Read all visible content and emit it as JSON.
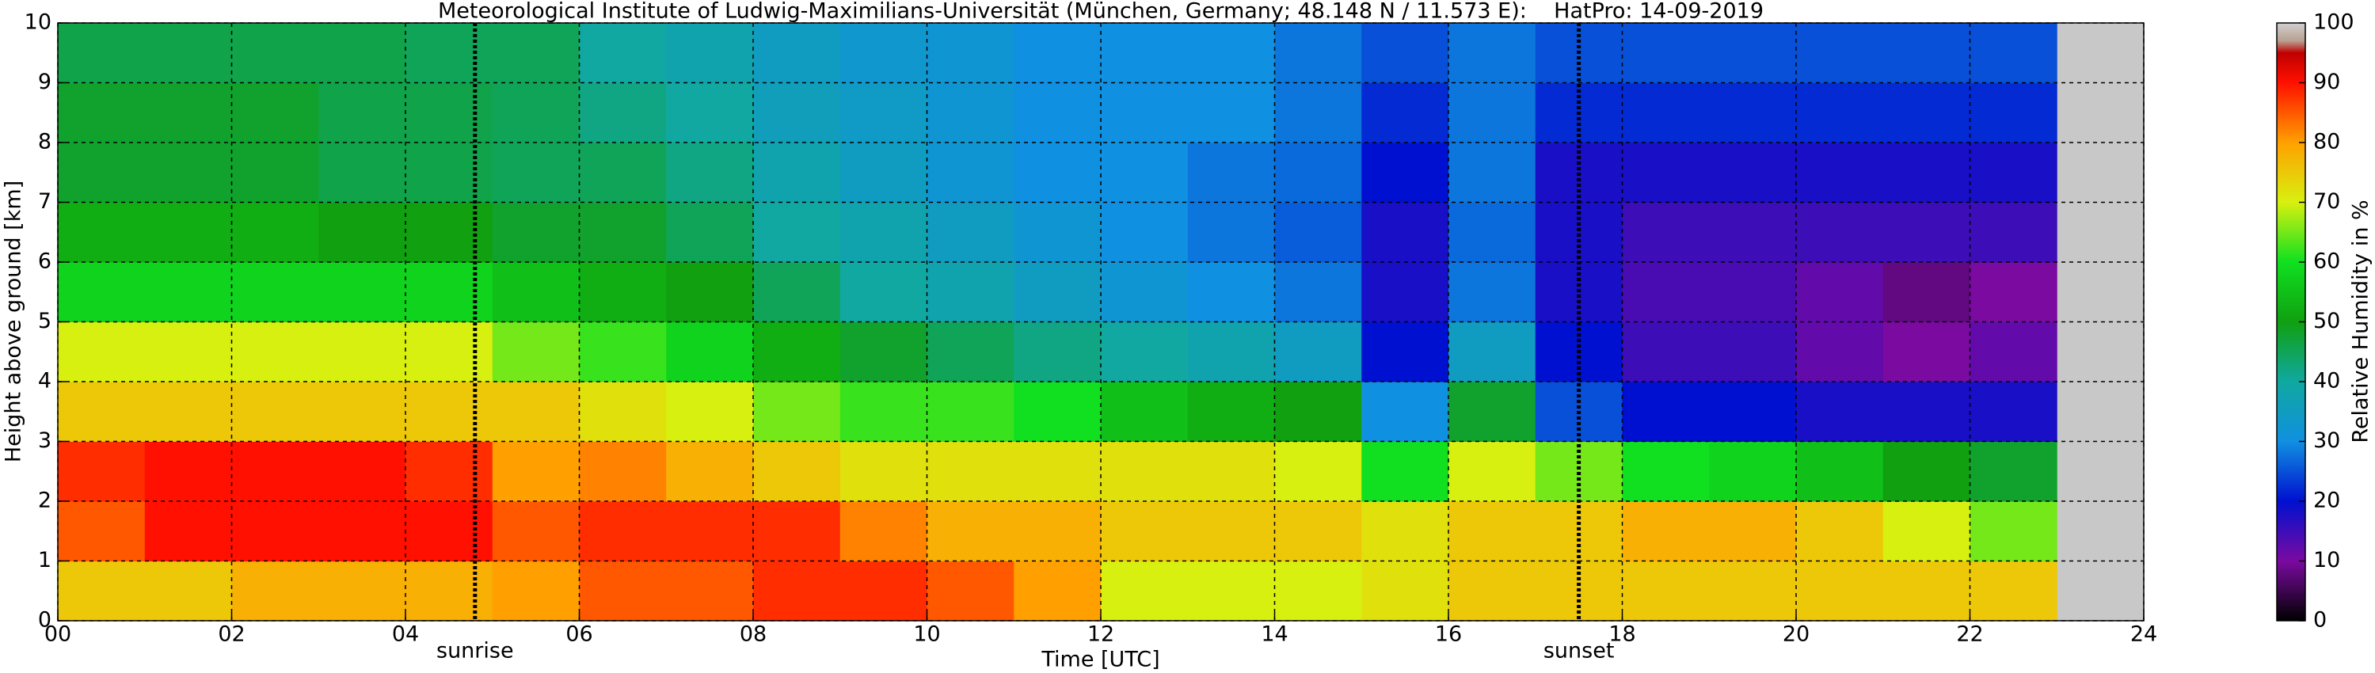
{
  "chart_data": {
    "type": "heatmap",
    "title": "Meteorological Institute of Ludwig-Maximilians-Universität (München, Germany; 48.148 N / 11.573 E):    HatPro: 14-09-2019",
    "x_label": "Time [UTC]",
    "y_label": "Height above ground [km]",
    "colorbar_label": "Relative Humidity in %",
    "xbins": [
      0,
      1,
      2,
      3,
      4,
      5,
      6,
      7,
      8,
      9,
      10,
      11,
      12,
      13,
      14,
      15,
      16,
      17,
      18,
      19,
      20,
      21,
      22,
      23
    ],
    "ybins": [
      0,
      1,
      2,
      3,
      4,
      5,
      6,
      7,
      8,
      9,
      10
    ],
    "values": [
      [
        75,
        75,
        78,
        78,
        78,
        80,
        85,
        85,
        88,
        88,
        85,
        80,
        70,
        70,
        70,
        72,
        75,
        75,
        75,
        75,
        75,
        75,
        75
      ],
      [
        85,
        90,
        90,
        90,
        90,
        85,
        88,
        88,
        88,
        82,
        78,
        78,
        75,
        75,
        75,
        72,
        75,
        75,
        78,
        78,
        75,
        70,
        65
      ],
      [
        88,
        90,
        90,
        90,
        88,
        80,
        82,
        78,
        75,
        72,
        72,
        72,
        72,
        72,
        70,
        60,
        70,
        65,
        60,
        58,
        55,
        50,
        48
      ],
      [
        75,
        75,
        75,
        75,
        75,
        75,
        72,
        70,
        65,
        62,
        62,
        60,
        55,
        52,
        50,
        30,
        48,
        25,
        20,
        20,
        18,
        18,
        18
      ],
      [
        70,
        70,
        70,
        70,
        70,
        65,
        62,
        58,
        52,
        48,
        45,
        42,
        40,
        38,
        35,
        20,
        35,
        20,
        15,
        15,
        12,
        10,
        12
      ],
      [
        58,
        58,
        58,
        58,
        58,
        55,
        52,
        50,
        45,
        40,
        38,
        35,
        32,
        30,
        28,
        18,
        28,
        18,
        14,
        14,
        12,
        8,
        10
      ],
      [
        52,
        52,
        52,
        50,
        50,
        48,
        48,
        45,
        40,
        38,
        35,
        32,
        30,
        28,
        26,
        18,
        27,
        18,
        15,
        15,
        15,
        15,
        15
      ],
      [
        48,
        48,
        48,
        46,
        46,
        45,
        45,
        42,
        38,
        35,
        32,
        30,
        30,
        28,
        27,
        20,
        28,
        18,
        18,
        18,
        18,
        18,
        18
      ],
      [
        48,
        48,
        48,
        46,
        46,
        45,
        42,
        40,
        36,
        34,
        32,
        30,
        30,
        30,
        28,
        22,
        28,
        22,
        22,
        22,
        22,
        22,
        22
      ],
      [
        46,
        46,
        46,
        46,
        45,
        45,
        40,
        38,
        35,
        33,
        32,
        30,
        30,
        30,
        28,
        25,
        28,
        25,
        25,
        25,
        25,
        25,
        25
      ]
    ],
    "xlim": [
      0,
      24
    ],
    "ylim": [
      0,
      10
    ],
    "xticks": [
      {
        "value": 0,
        "label": "00"
      },
      {
        "value": 2,
        "label": "02"
      },
      {
        "value": 4,
        "label": "04"
      },
      {
        "value": 6,
        "label": "06"
      },
      {
        "value": 8,
        "label": "08"
      },
      {
        "value": 10,
        "label": "10"
      },
      {
        "value": 12,
        "label": "12"
      },
      {
        "value": 14,
        "label": "14"
      },
      {
        "value": 16,
        "label": "16"
      },
      {
        "value": 18,
        "label": "18"
      },
      {
        "value": 20,
        "label": "20"
      },
      {
        "value": 22,
        "label": "22"
      },
      {
        "value": 24,
        "label": "24"
      }
    ],
    "yticks": [
      0,
      1,
      2,
      3,
      4,
      5,
      6,
      7,
      8,
      9,
      10
    ],
    "clim": [
      0,
      100
    ],
    "cticks": [
      0,
      10,
      20,
      30,
      40,
      50,
      60,
      70,
      80,
      90,
      100
    ],
    "colormap": [
      {
        "value": 0,
        "color": "#000000"
      },
      {
        "value": 10,
        "color": "#7a0aa0"
      },
      {
        "value": 20,
        "color": "#0010d0"
      },
      {
        "value": 30,
        "color": "#1090e0"
      },
      {
        "value": 40,
        "color": "#10a8a0"
      },
      {
        "value": 50,
        "color": "#10a010"
      },
      {
        "value": 60,
        "color": "#10e020"
      },
      {
        "value": 70,
        "color": "#d8f010"
      },
      {
        "value": 80,
        "color": "#ffa000"
      },
      {
        "value": 90,
        "color": "#ff1000"
      },
      {
        "value": 95,
        "color": "#c00000"
      },
      {
        "value": 97,
        "color": "#b8a090"
      },
      {
        "value": 100,
        "color": "#d0d0d0"
      }
    ],
    "nodata_color": "#c8c8c8",
    "grid": true,
    "annotations": [
      {
        "text": "sunrise",
        "x": 4.8
      },
      {
        "text": "sunset",
        "x": 17.5
      }
    ]
  }
}
